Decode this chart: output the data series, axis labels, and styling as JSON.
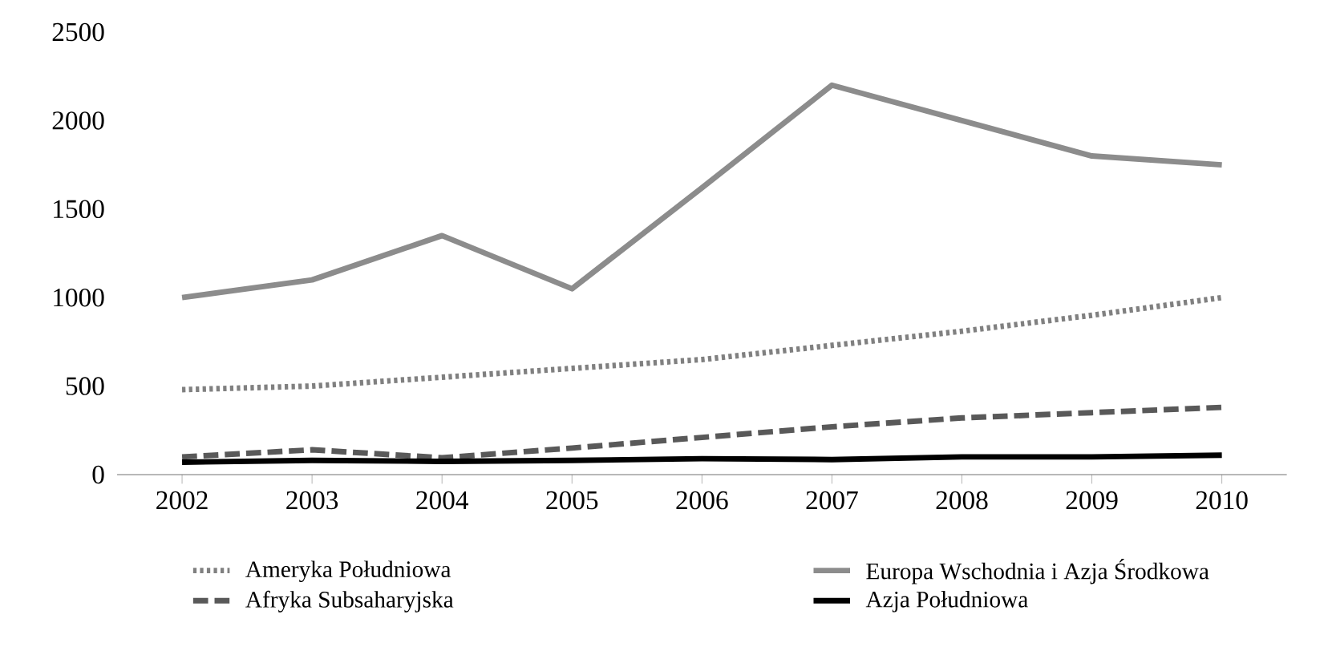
{
  "chart_data": {
    "type": "line",
    "categories": [
      "2002",
      "2003",
      "2004",
      "2005",
      "2006",
      "2007",
      "2008",
      "2009",
      "2010"
    ],
    "series": [
      {
        "name": "Ameryka Południowa",
        "color": "#808080",
        "line_style": "dotted",
        "values": [
          480,
          500,
          550,
          600,
          650,
          730,
          810,
          900,
          1000
        ]
      },
      {
        "name": "Europa Wschodnia i Azja Środkowa",
        "color": "#8c8c8c",
        "line_style": "solid",
        "values": [
          1000,
          1100,
          1350,
          1050,
          1620,
          2200,
          2000,
          1800,
          1750
        ]
      },
      {
        "name": "Afryka Subsaharyjska",
        "color": "#595959",
        "line_style": "dashed",
        "values": [
          100,
          140,
          95,
          150,
          210,
          270,
          320,
          350,
          380
        ]
      },
      {
        "name": "Azja Południowa",
        "color": "#000000",
        "line_style": "solid",
        "values": [
          70,
          80,
          75,
          80,
          90,
          85,
          100,
          100,
          110
        ]
      }
    ],
    "ylim": [
      0,
      2500
    ],
    "yticks": [
      0,
      500,
      1000,
      1500,
      2000,
      2500
    ],
    "grid": false,
    "legend": "bottom",
    "marker": "none"
  }
}
